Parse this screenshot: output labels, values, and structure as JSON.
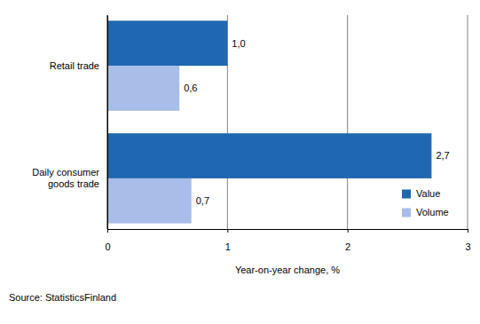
{
  "chart_data": {
    "type": "bar",
    "orientation": "horizontal",
    "categories": [
      "Retail trade",
      "Daily consumer goods trade"
    ],
    "series": [
      {
        "name": "Value",
        "color": "#1f67b1",
        "values": [
          1.0,
          2.7
        ],
        "value_labels": [
          "1,0",
          "2,7"
        ]
      },
      {
        "name": "Volume",
        "color": "#a9bde9",
        "values": [
          0.6,
          0.7
        ],
        "value_labels": [
          "0,6",
          "0,7"
        ]
      }
    ],
    "x_label": "Year-on-year change, %",
    "annotations": [
      "Source: StatisticsFinland"
    ],
    "xlim": [
      0,
      3
    ],
    "xticks": [
      0,
      1,
      2,
      3
    ],
    "grid": true,
    "legend": "lower right",
    "data_labels": true
  }
}
